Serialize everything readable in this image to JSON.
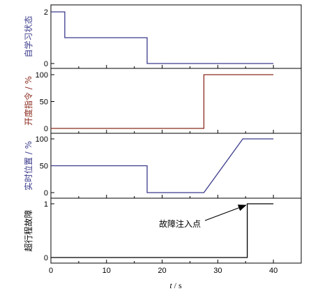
{
  "chart_data": [
    {
      "type": "line",
      "ylabel": "自学习状态",
      "xlim": [
        0,
        45
      ],
      "ylim": [
        0,
        2
      ],
      "yticks": [
        0,
        2
      ],
      "color": "#3a3a8c",
      "series": [
        {
          "x": [
            0,
            2.5,
            2.5,
            17.3,
            17.3,
            40
          ],
          "y": [
            2,
            2,
            1,
            1,
            0,
            0
          ]
        }
      ]
    },
    {
      "type": "line",
      "ylabel": "开度指令 / %",
      "xlim": [
        0,
        45
      ],
      "ylim": [
        0,
        100
      ],
      "yticks": [
        0,
        50,
        100
      ],
      "color": "#8b2a1e",
      "series": [
        {
          "x": [
            0,
            27.5,
            27.5,
            40
          ],
          "y": [
            0,
            0,
            100,
            100
          ]
        }
      ]
    },
    {
      "type": "line",
      "ylabel": "实时位置 / %",
      "xlim": [
        0,
        45
      ],
      "ylim": [
        0,
        100
      ],
      "yticks": [
        0,
        50,
        100
      ],
      "color": "#3a3a8c",
      "series": [
        {
          "x": [
            0,
            17.3,
            17.3,
            27.5,
            34.5,
            40
          ],
          "y": [
            50,
            50,
            0,
            0,
            100,
            100
          ]
        }
      ]
    },
    {
      "type": "line",
      "ylabel": "超行程故障",
      "xlim": [
        0,
        45
      ],
      "ylim": [
        0,
        1
      ],
      "yticks": [
        0,
        1
      ],
      "color": "#000000",
      "series": [
        {
          "x": [
            0,
            35.3,
            35.3,
            40
          ],
          "y": [
            0,
            0,
            1,
            1
          ]
        }
      ],
      "annotation": {
        "text": "故障注入点",
        "x": 35.3,
        "y": 1
      }
    }
  ],
  "x_axis": {
    "ticks": [
      0,
      10,
      20,
      30,
      40
    ],
    "label_italic": "t",
    "label_rest": " / s"
  }
}
